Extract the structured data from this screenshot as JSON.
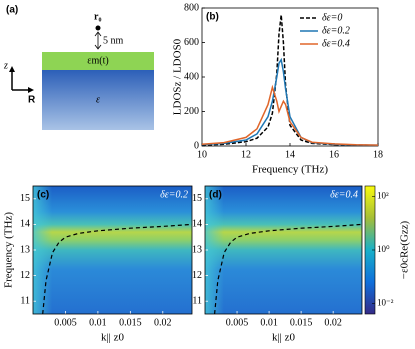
{
  "schematic": {
    "label": "(a)",
    "point": "r₀",
    "distance": "5 nm",
    "layer": "εm(t)",
    "substrate": "ε",
    "axis_z": "z",
    "axis_r": "R"
  },
  "chart_data": [
    {
      "type": "line",
      "label": "(b)",
      "xlabel": "Frequency (THz)",
      "ylabel": "LDOSz / LDOS0",
      "x": [
        10,
        11,
        12,
        12.5,
        13,
        13.2,
        13.4,
        13.5,
        13.6,
        13.7,
        13.8,
        14,
        14.5,
        15,
        16,
        17,
        18
      ],
      "series": [
        {
          "name": "δε=0",
          "color": "#000000",
          "dashed": true,
          "values": [
            5,
            10,
            25,
            45,
            110,
            190,
            420,
            650,
            760,
            600,
            350,
            120,
            35,
            15,
            8,
            5,
            4
          ]
        },
        {
          "name": "δε=0.2",
          "color": "#1f77b4",
          "dashed": false,
          "values": [
            8,
            15,
            35,
            70,
            170,
            260,
            400,
            480,
            500,
            430,
            330,
            170,
            50,
            20,
            10,
            6,
            5
          ]
        },
        {
          "name": "δε=0.4",
          "color": "#e0662a",
          "dashed": false,
          "values": [
            10,
            20,
            50,
            100,
            240,
            340,
            260,
            200,
            230,
            260,
            240,
            140,
            50,
            22,
            12,
            7,
            5
          ]
        }
      ],
      "xlim": [
        10,
        18
      ],
      "xticks": [
        10,
        12,
        14,
        16,
        18
      ],
      "ylim": [
        0,
        800
      ],
      "yticks": [
        0,
        200,
        400,
        600,
        800
      ],
      "legend": "upper right"
    },
    {
      "type": "heatmap",
      "label": "(c)",
      "annotation": "δε=0.2",
      "xlabel": "k|| z0",
      "ylabel": "Frequency (THz)",
      "xlim": [
        0,
        0.0245
      ],
      "xticks": [
        0.005,
        0.01,
        0.015,
        0.02
      ],
      "ylim": [
        10.5,
        15.5
      ],
      "yticks": [
        11,
        12,
        13,
        14,
        15
      ],
      "curve": {
        "color": "#000000",
        "x": [
          0.0015,
          0.002,
          0.003,
          0.004,
          0.005,
          0.007,
          0.01,
          0.015,
          0.02,
          0.0245
        ],
        "values": [
          10.5,
          11.8,
          12.9,
          13.3,
          13.5,
          13.65,
          13.75,
          13.85,
          13.92,
          14.0
        ]
      }
    },
    {
      "type": "heatmap",
      "label": "(d)",
      "annotation": "δε=0.4",
      "xlabel": "k|| z0",
      "xlim": [
        0,
        0.0245
      ],
      "xticks": [
        0.005,
        0.01,
        0.015,
        0.02
      ],
      "ylim": [
        10.5,
        15.5
      ],
      "yticks": [
        11,
        12,
        13,
        14,
        15
      ],
      "curve": {
        "color": "#000000",
        "x": [
          0.0015,
          0.002,
          0.003,
          0.004,
          0.005,
          0.007,
          0.01,
          0.015,
          0.02,
          0.0245
        ],
        "values": [
          10.5,
          11.8,
          12.9,
          13.3,
          13.5,
          13.65,
          13.75,
          13.85,
          13.92,
          14.0
        ]
      },
      "colorbar": {
        "label": "−ε0cRe(Gzz)",
        "log": true,
        "lim": [
          0.004,
          250
        ],
        "ticks": [
          {
            "value": 100,
            "label": "10²"
          },
          {
            "value": 1,
            "label": "10⁰"
          },
          {
            "value": 0.01,
            "label": "10⁻²"
          }
        ]
      }
    }
  ]
}
